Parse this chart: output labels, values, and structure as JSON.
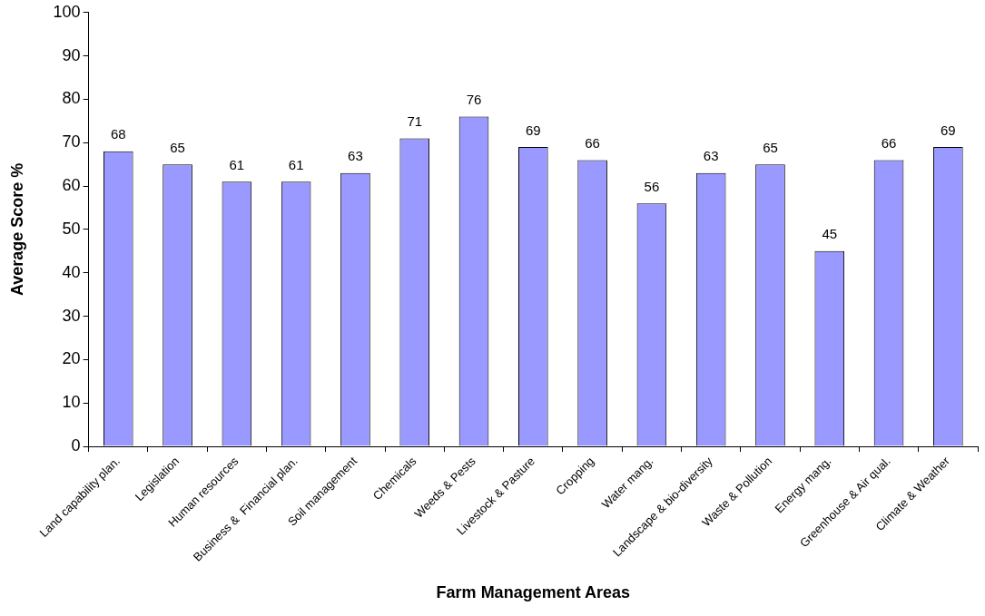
{
  "chart_data": {
    "type": "bar",
    "xlabel": "Farm Management Areas",
    "ylabel": "Average Score %",
    "categories": [
      "Land capability plan.",
      "Legislation",
      "Human resources",
      "Business &  Financial plan.",
      "Soil management",
      "Chemicals",
      "Weeds & Pests",
      "Livestock & Pasture",
      "Cropping",
      "Water mang.",
      "Landscape & bio-diversity",
      "Waste & Pollution",
      "Energy mang.",
      "Greenhouse & Air qual.",
      "Climate & Weather"
    ],
    "values": [
      68,
      65,
      61,
      61,
      63,
      71,
      76,
      69,
      66,
      56,
      63,
      65,
      45,
      66,
      69
    ],
    "color": "#9999ff",
    "ylim": [
      0,
      100
    ],
    "yticks": [
      0,
      10,
      20,
      30,
      40,
      50,
      60,
      70,
      80,
      90,
      100
    ],
    "data_labels": true,
    "grid": false,
    "legend": false
  }
}
